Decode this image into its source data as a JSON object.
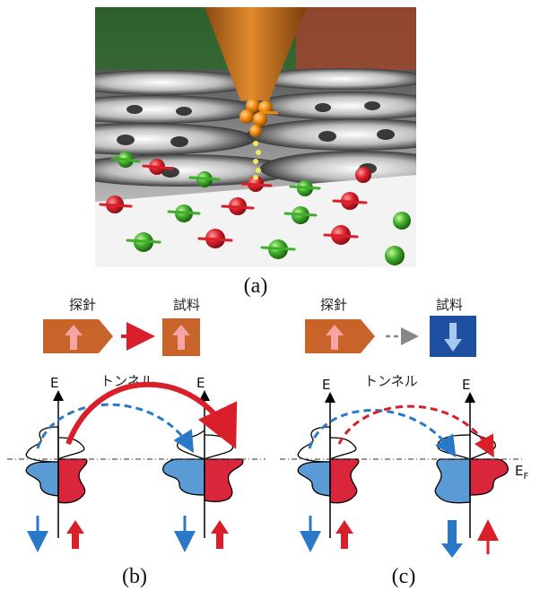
{
  "panels": {
    "a": {
      "label": "(a)"
    },
    "b": {
      "label": "(b)",
      "probe_label": "探針",
      "sample_label": "試料",
      "tunnel_label": "トンネル",
      "energy_left": "E",
      "energy_right": "E"
    },
    "c": {
      "label": "(c)",
      "probe_label": "探針",
      "sample_label": "試料",
      "tunnel_label": "トンネル",
      "energy_left": "E",
      "energy_right": "E",
      "fermi_label": "E",
      "fermi_sub": "F"
    }
  },
  "colors": {
    "probe_orange": "#c8642a",
    "sample_blue": "#1f4fa0",
    "spin_up_red": "#d81f2a",
    "spin_down_blue": "#2a78c8",
    "band_blue": "#5b9bd5",
    "band_red": "#d9263a",
    "pink_arrow": "#f6a5a5",
    "light_blue_arrow": "#a9c8ef"
  }
}
